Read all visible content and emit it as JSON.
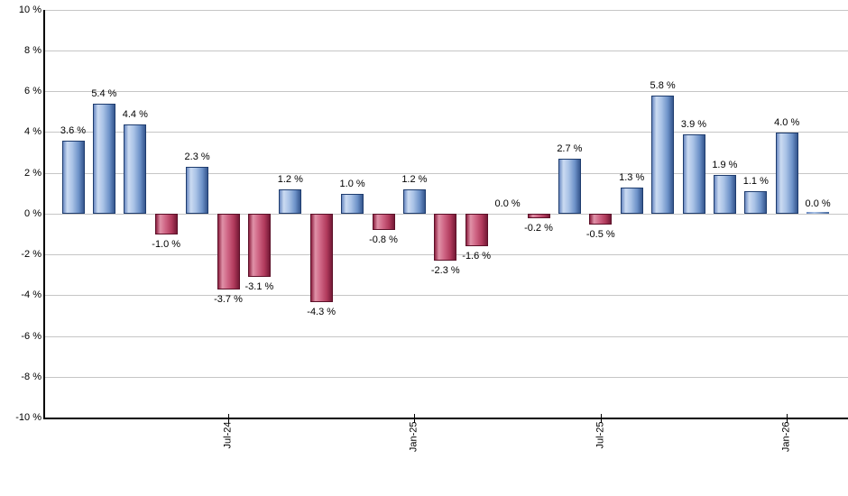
{
  "colors": {
    "background": "#ffffff",
    "gridline": "#c6c6c6",
    "axis": "#000000",
    "text": "#000000",
    "positive_bar_light": "#cbdbf2",
    "positive_bar_dark": "#35568e",
    "positive_bar_border": "#1e3c6e",
    "negative_bar_light": "#e092a8",
    "negative_bar_dark": "#751936",
    "negative_bar_border": "#5c1028"
  },
  "chart_data": {
    "type": "bar",
    "title": "",
    "xlabel": "",
    "ylabel": "",
    "ylim": [
      -10,
      10
    ],
    "y_tick_interval": 2,
    "grid": true,
    "legend": false,
    "y_tick_labels": [
      "10 %",
      "8 %",
      "6 %",
      "4 %",
      "2 %",
      "0 %",
      "-2 %",
      "-4 %",
      "-6 %",
      "-8 %",
      "-10 %"
    ],
    "x_ticks": [
      {
        "bar_index": 5,
        "label": "Jul-24"
      },
      {
        "bar_index": 11,
        "label": "Jan-25"
      },
      {
        "bar_index": 17,
        "label": "Jul-25"
      },
      {
        "bar_index": 23,
        "label": "Jan-26"
      }
    ],
    "bars": [
      {
        "value": 3.6,
        "label": "3.6 %",
        "color": "positive",
        "sliver": false
      },
      {
        "value": 5.4,
        "label": "5.4 %",
        "color": "positive",
        "sliver": false
      },
      {
        "value": 4.4,
        "label": "4.4 %",
        "color": "positive",
        "sliver": false
      },
      {
        "value": -1.0,
        "label": "-1.0 %",
        "color": "negative",
        "sliver": false
      },
      {
        "value": 2.3,
        "label": "2.3 %",
        "color": "positive",
        "sliver": false
      },
      {
        "value": -3.7,
        "label": "-3.7 %",
        "color": "negative",
        "sliver": false
      },
      {
        "value": -3.1,
        "label": "-3.1 %",
        "color": "negative",
        "sliver": false
      },
      {
        "value": 1.2,
        "label": "1.2 %",
        "color": "positive",
        "sliver": false
      },
      {
        "value": -4.3,
        "label": "-4.3 %",
        "color": "negative",
        "sliver": false
      },
      {
        "value": 1.0,
        "label": "1.0 %",
        "color": "positive",
        "sliver": false
      },
      {
        "value": -0.8,
        "label": "-0.8 %",
        "color": "negative",
        "sliver": false
      },
      {
        "value": 1.2,
        "label": "1.2 %",
        "color": "positive",
        "sliver": false
      },
      {
        "value": -2.3,
        "label": "-2.3 %",
        "color": "negative",
        "sliver": false
      },
      {
        "value": -1.6,
        "label": "-1.6 %",
        "color": "negative",
        "sliver": false
      },
      {
        "value": 0.0,
        "label": "0.0 %",
        "color": "none",
        "sliver": false
      },
      {
        "value": -0.2,
        "label": "-0.2 %",
        "color": "negative",
        "sliver": false
      },
      {
        "value": 2.7,
        "label": "2.7 %",
        "color": "positive",
        "sliver": false
      },
      {
        "value": -0.5,
        "label": "-0.5 %",
        "color": "negative",
        "sliver": false
      },
      {
        "value": 1.3,
        "label": "1.3 %",
        "color": "positive",
        "sliver": false
      },
      {
        "value": 5.8,
        "label": "5.8 %",
        "color": "positive",
        "sliver": false
      },
      {
        "value": 3.9,
        "label": "3.9 %",
        "color": "positive",
        "sliver": false
      },
      {
        "value": 1.9,
        "label": "1.9 %",
        "color": "positive",
        "sliver": false
      },
      {
        "value": 1.1,
        "label": "1.1 %",
        "color": "positive",
        "sliver": false
      },
      {
        "value": 4.0,
        "label": "4.0 %",
        "color": "positive",
        "sliver": false
      },
      {
        "value": 0.0,
        "label": "0.0 %",
        "color": "positive",
        "sliver": true
      }
    ]
  }
}
